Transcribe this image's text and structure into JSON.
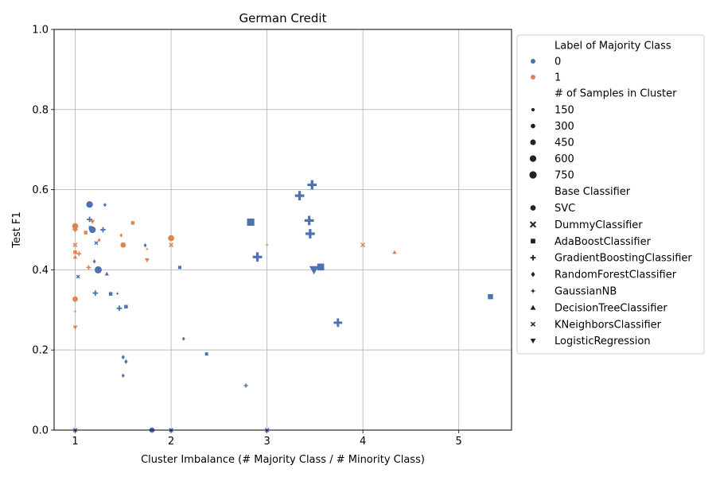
{
  "chart_data": {
    "type": "scatter",
    "title": "German Credit",
    "xlabel": "Cluster Imbalance (# Majority Class / # Minority Class)",
    "ylabel": "Test F1",
    "xlim": [
      0.78,
      5.55
    ],
    "ylim": [
      0.0,
      1.0
    ],
    "xticks": [
      "1",
      "2",
      "3",
      "4",
      "5"
    ],
    "yticks": [
      "0.0",
      "0.2",
      "0.4",
      "0.6",
      "0.8",
      "1.0"
    ],
    "grid": true,
    "legend_position": "outside-right",
    "colors": {
      "0": "#4c72b0",
      "1": "#dd8452"
    },
    "legend": {
      "hue_title": "Label of Majority Class",
      "hue_entries": [
        "0",
        "1"
      ],
      "size_title": "# of Samples in Cluster",
      "size_entries": [
        "150",
        "300",
        "450",
        "600",
        "750"
      ],
      "style_title": "Base Classifier",
      "style_entries": [
        {
          "label": "SVC",
          "marker": "circle"
        },
        {
          "label": "DummyClassifier",
          "marker": "x"
        },
        {
          "label": "AdaBoostClassifier",
          "marker": "square"
        },
        {
          "label": "GradientBoostingClassifier",
          "marker": "plus"
        },
        {
          "label": "RandomForestClassifier",
          "marker": "diamond"
        },
        {
          "label": "GaussianNB",
          "marker": "star"
        },
        {
          "label": "DecisionTreeClassifier",
          "marker": "triangle-up"
        },
        {
          "label": "KNeighborsClassifier",
          "marker": "x-small"
        },
        {
          "label": "LogisticRegression",
          "marker": "triangle-down"
        }
      ]
    },
    "points": [
      {
        "x": 1.15,
        "y": 0.563,
        "label": 0,
        "size": 300,
        "clf": "SVC"
      },
      {
        "x": 1.18,
        "y": 0.5,
        "label": 0,
        "size": 300,
        "clf": "SVC"
      },
      {
        "x": 1.24,
        "y": 0.4,
        "label": 0,
        "size": 350,
        "clf": "SVC"
      },
      {
        "x": 1.8,
        "y": 0.0,
        "label": 0,
        "size": 200,
        "clf": "SVC"
      },
      {
        "x": 1.0,
        "y": 0.509,
        "label": 1,
        "size": 250,
        "clf": "SVC"
      },
      {
        "x": 1.0,
        "y": 0.327,
        "label": 1,
        "size": 200,
        "clf": "SVC"
      },
      {
        "x": 1.5,
        "y": 0.462,
        "label": 1,
        "size": 200,
        "clf": "SVC"
      },
      {
        "x": 2.0,
        "y": 0.479,
        "label": 1,
        "size": 250,
        "clf": "SVC"
      },
      {
        "x": 1.0,
        "y": 0.0,
        "label": 0,
        "size": 100,
        "clf": "DummyClassifier"
      },
      {
        "x": 2.0,
        "y": 0.0,
        "label": 0,
        "size": 100,
        "clf": "DummyClassifier"
      },
      {
        "x": 3.0,
        "y": 0.0,
        "label": 0,
        "size": 100,
        "clf": "DummyClassifier"
      },
      {
        "x": 1.0,
        "y": 0.505,
        "label": 1,
        "size": 150,
        "clf": "DummyClassifier"
      },
      {
        "x": 1.0,
        "y": 0.462,
        "label": 1,
        "size": 100,
        "clf": "DummyClassifier"
      },
      {
        "x": 2.0,
        "y": 0.462,
        "label": 1,
        "size": 100,
        "clf": "DummyClassifier"
      },
      {
        "x": 4.0,
        "y": 0.462,
        "label": 1,
        "size": 100,
        "clf": "DummyClassifier"
      },
      {
        "x": 2.83,
        "y": 0.519,
        "label": 0,
        "size": 500,
        "clf": "AdaBoostClassifier"
      },
      {
        "x": 3.56,
        "y": 0.407,
        "label": 0,
        "size": 450,
        "clf": "AdaBoostClassifier"
      },
      {
        "x": 5.33,
        "y": 0.333,
        "label": 0,
        "size": 250,
        "clf": "AdaBoostClassifier"
      },
      {
        "x": 1.16,
        "y": 0.505,
        "label": 0,
        "size": 120,
        "clf": "AdaBoostClassifier"
      },
      {
        "x": 1.37,
        "y": 0.34,
        "label": 0,
        "size": 120,
        "clf": "AdaBoostClassifier"
      },
      {
        "x": 1.53,
        "y": 0.308,
        "label": 0,
        "size": 120,
        "clf": "AdaBoostClassifier"
      },
      {
        "x": 2.09,
        "y": 0.406,
        "label": 0,
        "size": 100,
        "clf": "AdaBoostClassifier"
      },
      {
        "x": 2.37,
        "y": 0.19,
        "label": 0,
        "size": 100,
        "clf": "AdaBoostClassifier"
      },
      {
        "x": 1.6,
        "y": 0.517,
        "label": 1,
        "size": 120,
        "clf": "AdaBoostClassifier"
      },
      {
        "x": 1.11,
        "y": 0.493,
        "label": 1,
        "size": 120,
        "clf": "AdaBoostClassifier"
      },
      {
        "x": 1.0,
        "y": 0.444,
        "label": 1,
        "size": 120,
        "clf": "AdaBoostClassifier"
      },
      {
        "x": 3.47,
        "y": 0.612,
        "label": 0,
        "size": 600,
        "clf": "GradientBoostingClassifier"
      },
      {
        "x": 3.34,
        "y": 0.585,
        "label": 0,
        "size": 600,
        "clf": "GradientBoostingClassifier"
      },
      {
        "x": 3.44,
        "y": 0.523,
        "label": 0,
        "size": 600,
        "clf": "GradientBoostingClassifier"
      },
      {
        "x": 3.45,
        "y": 0.49,
        "label": 0,
        "size": 600,
        "clf": "GradientBoostingClassifier"
      },
      {
        "x": 2.9,
        "y": 0.432,
        "label": 0,
        "size": 600,
        "clf": "GradientBoostingClassifier"
      },
      {
        "x": 3.74,
        "y": 0.268,
        "label": 0,
        "size": 500,
        "clf": "GradientBoostingClassifier"
      },
      {
        "x": 1.15,
        "y": 0.526,
        "label": 0,
        "size": 200,
        "clf": "GradientBoostingClassifier"
      },
      {
        "x": 1.29,
        "y": 0.5,
        "label": 0,
        "size": 200,
        "clf": "GradientBoostingClassifier"
      },
      {
        "x": 1.21,
        "y": 0.342,
        "label": 0,
        "size": 200,
        "clf": "GradientBoostingClassifier"
      },
      {
        "x": 1.46,
        "y": 0.304,
        "label": 0,
        "size": 200,
        "clf": "GradientBoostingClassifier"
      },
      {
        "x": 2.78,
        "y": 0.111,
        "label": 0,
        "size": 120,
        "clf": "GradientBoostingClassifier"
      },
      {
        "x": 1.04,
        "y": 0.44,
        "label": 1,
        "size": 150,
        "clf": "GradientBoostingClassifier"
      },
      {
        "x": 1.14,
        "y": 0.406,
        "label": 1,
        "size": 150,
        "clf": "GradientBoostingClassifier"
      },
      {
        "x": 1.31,
        "y": 0.562,
        "label": 0,
        "size": 120,
        "clf": "RandomForestClassifier"
      },
      {
        "x": 1.2,
        "y": 0.421,
        "label": 0,
        "size": 120,
        "clf": "RandomForestClassifier"
      },
      {
        "x": 1.73,
        "y": 0.461,
        "label": 0,
        "size": 120,
        "clf": "RandomForestClassifier"
      },
      {
        "x": 2.13,
        "y": 0.228,
        "label": 0,
        "size": 120,
        "clf": "RandomForestClassifier"
      },
      {
        "x": 1.5,
        "y": 0.182,
        "label": 0,
        "size": 150,
        "clf": "RandomForestClassifier"
      },
      {
        "x": 1.53,
        "y": 0.171,
        "label": 0,
        "size": 150,
        "clf": "RandomForestClassifier"
      },
      {
        "x": 1.5,
        "y": 0.136,
        "label": 0,
        "size": 120,
        "clf": "RandomForestClassifier"
      },
      {
        "x": 1.48,
        "y": 0.486,
        "label": 1,
        "size": 120,
        "clf": "RandomForestClassifier"
      },
      {
        "x": 1.25,
        "y": 0.474,
        "label": 1,
        "size": 120,
        "clf": "RandomForestClassifier"
      },
      {
        "x": 1.44,
        "y": 0.341,
        "label": 0,
        "size": 100,
        "clf": "GaussianNB"
      },
      {
        "x": 1.75,
        "y": 0.452,
        "label": 1,
        "size": 100,
        "clf": "GaussianNB"
      },
      {
        "x": 3.0,
        "y": 0.462,
        "label": 1,
        "size": 100,
        "clf": "GaussianNB"
      },
      {
        "x": 1.0,
        "y": 0.296,
        "label": 1,
        "size": 100,
        "clf": "GaussianNB"
      },
      {
        "x": 1.33,
        "y": 0.39,
        "label": 0,
        "size": 120,
        "clf": "DecisionTreeClassifier"
      },
      {
        "x": 1.0,
        "y": 0.432,
        "label": 1,
        "size": 120,
        "clf": "DecisionTreeClassifier"
      },
      {
        "x": 4.33,
        "y": 0.444,
        "label": 1,
        "size": 120,
        "clf": "DecisionTreeClassifier"
      },
      {
        "x": 1.22,
        "y": 0.467,
        "label": 0,
        "size": 120,
        "clf": "KNeighborsClassifier"
      },
      {
        "x": 1.03,
        "y": 0.383,
        "label": 0,
        "size": 120,
        "clf": "KNeighborsClassifier"
      },
      {
        "x": 3.49,
        "y": 0.4,
        "label": 0,
        "size": 600,
        "clf": "LogisticRegression"
      },
      {
        "x": 1.18,
        "y": 0.52,
        "label": 1,
        "size": 150,
        "clf": "LogisticRegression"
      },
      {
        "x": 1.0,
        "y": 0.498,
        "label": 1,
        "size": 150,
        "clf": "LogisticRegression"
      },
      {
        "x": 1.75,
        "y": 0.424,
        "label": 1,
        "size": 150,
        "clf": "LogisticRegression"
      },
      {
        "x": 1.0,
        "y": 0.256,
        "label": 1,
        "size": 150,
        "clf": "LogisticRegression"
      }
    ]
  }
}
